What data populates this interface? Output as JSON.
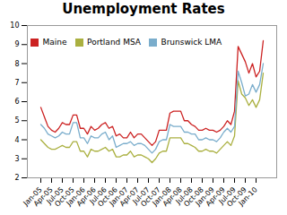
{
  "chart_data": {
    "type": "line",
    "title": "Unemployment Rates",
    "categories": [
      "Jan-05",
      null,
      null,
      "Apr-05",
      null,
      null,
      "Jul-05",
      null,
      null,
      "Oct-05",
      null,
      null,
      "Jan-06",
      null,
      null,
      "Apr-06",
      null,
      null,
      "Jul-06",
      null,
      null,
      "Oct-06",
      null,
      null,
      "Jan-07",
      null,
      null,
      "Apr-07",
      null,
      null,
      "Jul-07",
      null,
      null,
      "Oct-07",
      null,
      null,
      "Jan-08",
      null,
      null,
      "Apr-08",
      null,
      null,
      "Jul-08",
      null,
      null,
      "Oct-08",
      null,
      null,
      "Jan-09",
      null,
      null,
      "Apr-09",
      null,
      null,
      "Jul-09",
      null,
      null,
      "Oct-09",
      null,
      null,
      "Jan-10",
      null,
      null
    ],
    "series": [
      {
        "name": "Maine",
        "color": "#cc2222",
        "values": [
          5.7,
          5.2,
          4.7,
          4.5,
          4.4,
          4.6,
          4.9,
          4.8,
          4.8,
          5.3,
          5.3,
          4.6,
          4.6,
          4.3,
          4.7,
          4.5,
          4.6,
          4.8,
          4.9,
          4.6,
          4.7,
          4.2,
          4.3,
          4.1,
          4.1,
          4.4,
          4.1,
          4.3,
          4.3,
          4.1,
          3.9,
          3.7,
          3.9,
          4.5,
          4.5,
          4.5,
          5.4,
          5.5,
          5.5,
          5.5,
          5.0,
          5.0,
          4.8,
          4.7,
          4.5,
          4.5,
          4.6,
          4.5,
          4.5,
          4.4,
          4.5,
          4.7,
          5.0,
          4.8,
          5.5,
          8.9,
          8.5,
          8.1,
          7.5,
          8.0,
          7.3,
          7.6,
          9.2
        ]
      },
      {
        "name": "Portland MSA",
        "color": "#aab040",
        "values": [
          4.0,
          3.8,
          3.6,
          3.5,
          3.5,
          3.6,
          3.7,
          3.6,
          3.6,
          3.9,
          3.9,
          3.4,
          3.4,
          3.1,
          3.5,
          3.4,
          3.4,
          3.5,
          3.6,
          3.4,
          3.5,
          3.1,
          3.1,
          3.2,
          3.2,
          3.4,
          3.1,
          3.2,
          3.2,
          3.1,
          3.0,
          2.8,
          3.0,
          3.3,
          3.4,
          3.4,
          4.1,
          4.1,
          4.1,
          4.1,
          3.8,
          3.8,
          3.7,
          3.6,
          3.4,
          3.4,
          3.5,
          3.4,
          3.4,
          3.3,
          3.5,
          3.7,
          3.9,
          3.7,
          4.2,
          7.1,
          6.4,
          6.2,
          5.8,
          6.1,
          5.7,
          6.1,
          7.5
        ]
      },
      {
        "name": "Brunswick LMA",
        "color": "#7aadcc",
        "values": [
          4.8,
          4.6,
          4.3,
          4.2,
          4.1,
          4.2,
          4.4,
          4.3,
          4.3,
          4.9,
          4.9,
          4.1,
          4.1,
          3.8,
          4.2,
          4.1,
          4.1,
          4.3,
          4.4,
          4.0,
          4.2,
          3.6,
          3.7,
          3.8,
          3.8,
          3.9,
          3.7,
          3.8,
          3.8,
          3.7,
          3.5,
          3.3,
          3.5,
          3.9,
          4.0,
          4.0,
          4.8,
          4.7,
          4.7,
          4.7,
          4.4,
          4.4,
          4.3,
          4.3,
          4.0,
          4.0,
          4.1,
          4.0,
          4.0,
          3.9,
          4.1,
          4.4,
          4.6,
          4.4,
          4.7,
          7.6,
          7.0,
          6.3,
          6.4,
          6.9,
          6.5,
          6.9,
          8.0
        ]
      }
    ],
    "ylim": [
      2,
      10
    ],
    "yticks": [
      2,
      3,
      4,
      5,
      6,
      7,
      8,
      9,
      10
    ],
    "grid": false,
    "legend": "upper left"
  }
}
